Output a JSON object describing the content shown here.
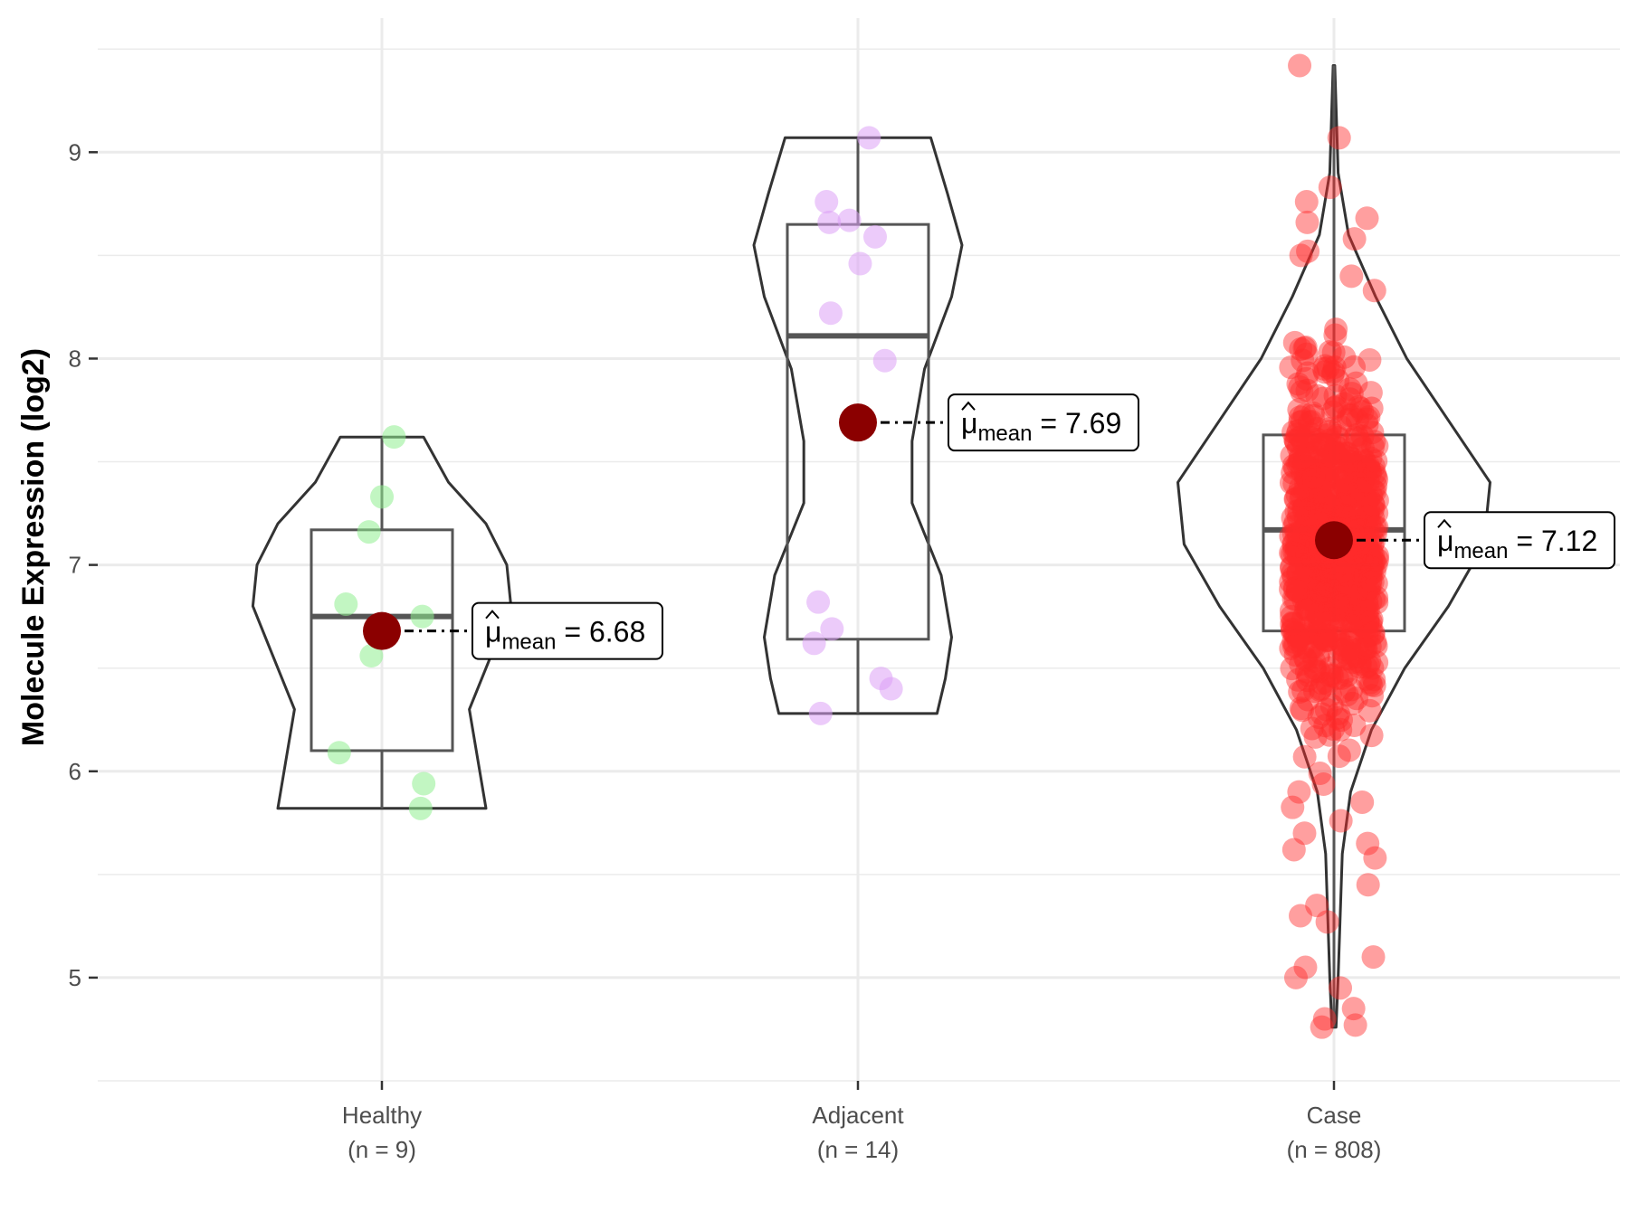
{
  "chart_data": {
    "type": "violin",
    "ylabel": "Molecule Expression (log2)",
    "ylim": [
      4.5,
      9.65
    ],
    "yticks": [
      5,
      6,
      7,
      8,
      9
    ],
    "grid": true,
    "mean_symbol": "μ",
    "mean_subscript": "mean",
    "colors": {
      "point_center": "#8b0000",
      "box_line": "#555555",
      "violin_line": "#333333",
      "grid": "#ebebeb"
    },
    "groups": [
      {
        "name": "Healthy",
        "n_label": "(n = 9)",
        "color": "#90ee90",
        "min": 5.82,
        "q1": 6.1,
        "median": 6.75,
        "q3": 7.17,
        "max": 7.62,
        "mean": 6.68,
        "mean_label": "6.68",
        "violin": [
          [
            5.82,
            0.5
          ],
          [
            6.0,
            0.47
          ],
          [
            6.3,
            0.42
          ],
          [
            6.6,
            0.54
          ],
          [
            6.8,
            0.62
          ],
          [
            7.0,
            0.6
          ],
          [
            7.2,
            0.5
          ],
          [
            7.4,
            0.32
          ],
          [
            7.62,
            0.2
          ]
        ],
        "points": [
          5.82,
          5.94,
          6.09,
          6.56,
          6.75,
          6.81,
          7.16,
          7.33,
          7.62
        ]
      },
      {
        "name": "Adjacent",
        "n_label": "(n = 14)",
        "color": "#dda0f5",
        "min": 6.28,
        "q1": 6.64,
        "median": 8.11,
        "q3": 8.65,
        "max": 9.07,
        "mean": 7.69,
        "mean_label": "7.69",
        "violin": [
          [
            6.28,
            0.38
          ],
          [
            6.45,
            0.42
          ],
          [
            6.65,
            0.45
          ],
          [
            6.95,
            0.4
          ],
          [
            7.3,
            0.26
          ],
          [
            7.6,
            0.26
          ],
          [
            7.95,
            0.32
          ],
          [
            8.3,
            0.45
          ],
          [
            8.55,
            0.5
          ],
          [
            8.8,
            0.43
          ],
          [
            9.07,
            0.35
          ]
        ],
        "points": [
          6.28,
          6.4,
          6.45,
          6.62,
          6.69,
          6.82,
          7.99,
          8.22,
          8.46,
          8.59,
          8.66,
          8.67,
          8.76,
          9.07
        ]
      },
      {
        "name": "Case",
        "n_label": "(n = 808)",
        "color": "#ff2b2b",
        "min": 4.76,
        "q1": 6.68,
        "median": 7.17,
        "q3": 7.63,
        "max": 9.42,
        "mean": 7.12,
        "mean_label": "7.12",
        "violin": [
          [
            4.76,
            0.01
          ],
          [
            5.0,
            0.02
          ],
          [
            5.3,
            0.03
          ],
          [
            5.6,
            0.04
          ],
          [
            5.9,
            0.08
          ],
          [
            6.2,
            0.18
          ],
          [
            6.5,
            0.34
          ],
          [
            6.8,
            0.55
          ],
          [
            7.1,
            0.72
          ],
          [
            7.4,
            0.75
          ],
          [
            7.7,
            0.55
          ],
          [
            8.0,
            0.35
          ],
          [
            8.3,
            0.2
          ],
          [
            8.6,
            0.07
          ],
          [
            8.9,
            0.02
          ],
          [
            9.42,
            0.004
          ]
        ],
        "points": [
          4.76,
          4.77,
          4.8,
          4.85,
          4.95,
          5.0,
          5.05,
          5.1,
          5.27,
          5.3,
          5.35,
          5.45,
          5.58,
          5.62,
          5.65,
          5.7,
          5.76,
          5.85,
          5.9,
          5.99,
          8.5,
          8.52,
          8.58,
          8.66,
          8.68,
          8.76,
          8.83,
          9.07,
          9.42
        ]
      }
    ]
  }
}
